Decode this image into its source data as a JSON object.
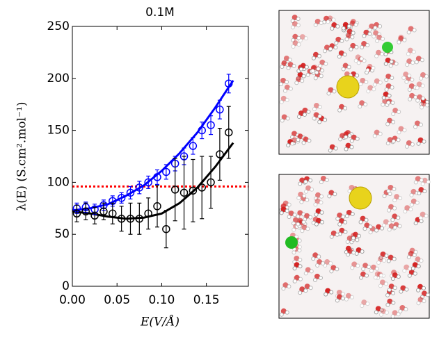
{
  "chart_data": {
    "type": "scatter",
    "title": "0.1M",
    "x_label": "E(V/Å)",
    "y_label": "λ(E) (S.cm².mol⁻¹)",
    "xlim": [
      0,
      0.197
    ],
    "ylim": [
      0,
      250
    ],
    "xticks": [
      {
        "value": 0,
        "label": "0.00"
      },
      0.05,
      {
        "value": 0.1,
        "label": "0.10"
      },
      0.15
    ],
    "yticks": [
      0,
      50,
      100,
      150,
      200,
      250
    ],
    "reference_line": {
      "value": 96,
      "color": "#ff0000"
    },
    "series": [
      {
        "color": "#0000ff",
        "x": [
          0.005,
          0.015,
          0.025,
          0.035,
          0.045,
          0.055,
          0.065,
          0.075,
          0.085,
          0.095,
          0.105,
          0.115,
          0.125,
          0.135,
          0.145,
          0.155,
          0.165,
          0.175
        ],
        "values": [
          75,
          76,
          74,
          78,
          82,
          85,
          90,
          95,
          100,
          105,
          110,
          118,
          125,
          135,
          150,
          155,
          170,
          195
        ],
        "errors": [
          5,
          5,
          5,
          5,
          5,
          5,
          6,
          6,
          6,
          7,
          7,
          7,
          8,
          8,
          8,
          9,
          9,
          9
        ]
      },
      {
        "color": "#000000",
        "x": [
          0.005,
          0.015,
          0.025,
          0.035,
          0.045,
          0.055,
          0.065,
          0.075,
          0.085,
          0.095,
          0.105,
          0.115,
          0.125,
          0.135,
          0.145,
          0.155,
          0.165,
          0.175
        ],
        "values": [
          70,
          72,
          68,
          72,
          70,
          65,
          65,
          65,
          70,
          77,
          55,
          93,
          90,
          92,
          95,
          100,
          127,
          148
        ],
        "errors": [
          8,
          8,
          8,
          8,
          10,
          12,
          15,
          15,
          15,
          20,
          18,
          30,
          35,
          30,
          30,
          25,
          25,
          25
        ]
      }
    ],
    "fits": [
      {
        "color": "#0000ff",
        "x": [
          0,
          0.02,
          0.04,
          0.06,
          0.08,
          0.1,
          0.12,
          0.14,
          0.16,
          0.18
        ],
        "values": [
          73,
          75,
          79,
          87,
          97,
          111,
          128,
          148,
          172,
          198
        ]
      },
      {
        "color": "#000000",
        "x": [
          0,
          0.02,
          0.04,
          0.06,
          0.08,
          0.1,
          0.12,
          0.14,
          0.16,
          0.18
        ],
        "values": [
          72,
          70,
          67,
          65,
          66,
          70,
          80,
          95,
          115,
          138
        ]
      }
    ]
  }
}
